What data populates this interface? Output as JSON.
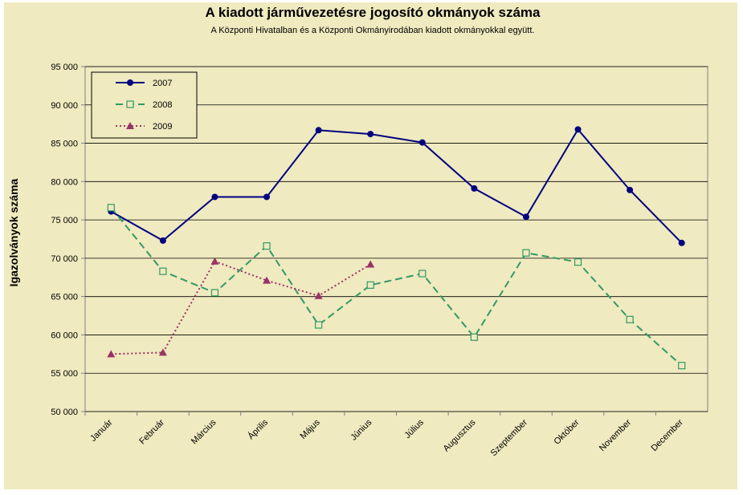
{
  "chart_data": {
    "type": "line",
    "title": "A  kiadott járművezetésre  jogosító okmányok száma",
    "subtitle": "A  Központi Hivatalban és a Központi Okmányirodában kiadott okmányokkal együtt.",
    "y_label": "Igazolványok száma",
    "categories": [
      "Január",
      "Február",
      "Március",
      "Április",
      "Május",
      "Június",
      "Július",
      "Augusztus",
      "Szeptember",
      "Október",
      "November",
      "December"
    ],
    "series": [
      {
        "name": "2007",
        "color": "#000080",
        "marker": "circle",
        "dash": "solid",
        "values": [
          76100,
          72300,
          78000,
          78000,
          86700,
          86200,
          85100,
          79100,
          75400,
          86800,
          78900,
          72000
        ]
      },
      {
        "name": "2008",
        "color": "#339966",
        "marker": "square",
        "dash": "dashed",
        "values": [
          76600,
          68300,
          65500,
          71600,
          61300,
          66500,
          68000,
          59700,
          70700,
          69500,
          62000,
          56000
        ]
      },
      {
        "name": "2009",
        "color": "#993366",
        "marker": "triangle",
        "dash": "dotted",
        "values": [
          57500,
          57700,
          69600,
          67100,
          65100,
          69200,
          null,
          null,
          null,
          null,
          null,
          null
        ]
      }
    ],
    "ylim": [
      50000,
      95000
    ],
    "yticks": [
      {
        "value": 50000,
        "label": "50 000"
      },
      {
        "value": 55000,
        "label": "55 000"
      },
      {
        "value": 60000,
        "label": "60 000"
      },
      {
        "value": 65000,
        "label": "65 000"
      },
      {
        "value": 70000,
        "label": "70 000"
      },
      {
        "value": 75000,
        "label": "75 000"
      },
      {
        "value": 80000,
        "label": "80 000"
      },
      {
        "value": 85000,
        "label": "85 000"
      },
      {
        "value": 90000,
        "label": "90 000"
      },
      {
        "value": 95000,
        "label": "95 000"
      }
    ],
    "grid": true,
    "legend": "upper left"
  }
}
